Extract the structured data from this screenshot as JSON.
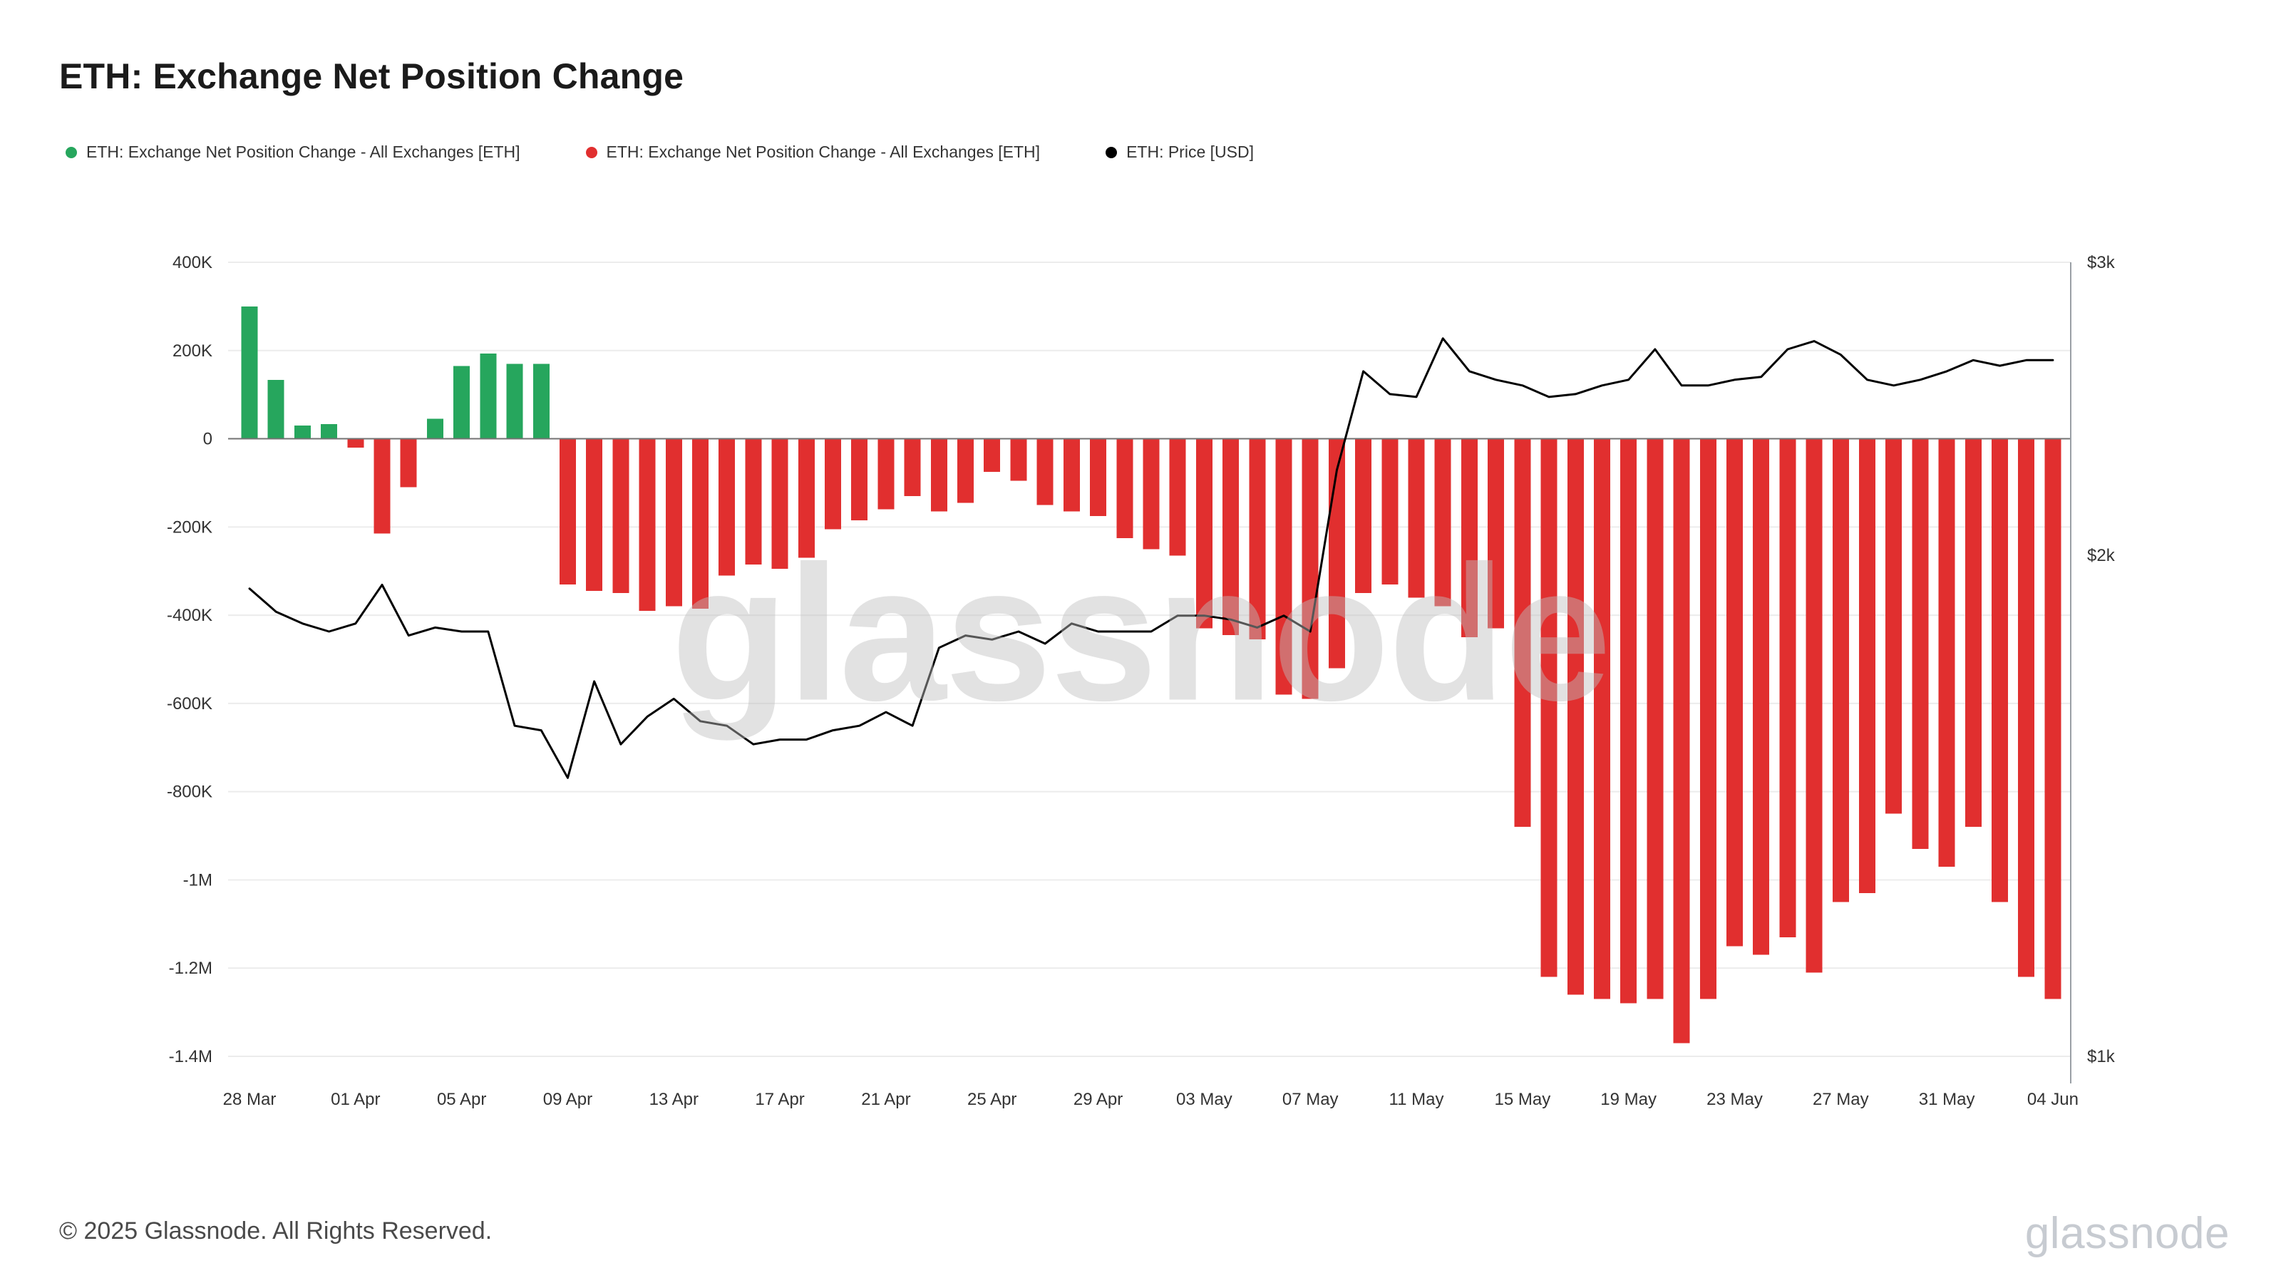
{
  "page": {
    "title": "ETH: Exchange Net Position Change",
    "footer_copyright": "© 2025 Glassnode. All Rights Reserved.",
    "watermark": "glassnode",
    "brand": "glassnode"
  },
  "legend": [
    {
      "label": "ETH: Exchange Net Position Change - All Exchanges [ETH]",
      "color": "#26a65d"
    },
    {
      "label": "ETH: Exchange Net Position Change - All Exchanges [ETH]",
      "color": "#e12f2f"
    },
    {
      "label": "ETH: Price [USD]",
      "color": "#000000"
    }
  ],
  "chart_data": {
    "type": "bar+line",
    "title": "ETH: Exchange Net Position Change",
    "x": [
      "28 Mar",
      "29 Mar",
      "30 Mar",
      "31 Mar",
      "01 Apr",
      "02 Apr",
      "03 Apr",
      "04 Apr",
      "05 Apr",
      "06 Apr",
      "07 Apr",
      "08 Apr",
      "09 Apr",
      "10 Apr",
      "11 Apr",
      "12 Apr",
      "13 Apr",
      "14 Apr",
      "15 Apr",
      "16 Apr",
      "17 Apr",
      "18 Apr",
      "19 Apr",
      "20 Apr",
      "21 Apr",
      "22 Apr",
      "23 Apr",
      "24 Apr",
      "25 Apr",
      "26 Apr",
      "27 Apr",
      "28 Apr",
      "29 Apr",
      "30 Apr",
      "01 May",
      "02 May",
      "03 May",
      "04 May",
      "05 May",
      "06 May",
      "07 May",
      "08 May",
      "09 May",
      "10 May",
      "11 May",
      "12 May",
      "13 May",
      "14 May",
      "15 May",
      "16 May",
      "17 May",
      "18 May",
      "19 May",
      "20 May",
      "21 May",
      "22 May",
      "23 May",
      "24 May",
      "25 May",
      "26 May",
      "27 May",
      "28 May",
      "29 May",
      "30 May",
      "31 May",
      "01 Jun",
      "02 Jun",
      "03 Jun",
      "04 Jun"
    ],
    "series": [
      {
        "name": "ETH: Exchange Net Position Change - All Exchanges [ETH]",
        "type": "bar",
        "axis": "left",
        "unit": "ETH",
        "positive_color": "#26a65d",
        "negative_color": "#e12f2f",
        "values": [
          300000,
          133000,
          30000,
          33000,
          -20000,
          -215000,
          -110000,
          45000,
          165000,
          193000,
          170000,
          170000,
          -330000,
          -345000,
          -350000,
          -390000,
          -380000,
          -385000,
          -310000,
          -285000,
          -295000,
          -270000,
          -205000,
          -185000,
          -160000,
          -130000,
          -165000,
          -145000,
          -75000,
          -95000,
          -150000,
          -165000,
          -175000,
          -225000,
          -250000,
          -265000,
          -430000,
          -445000,
          -455000,
          -580000,
          -590000,
          -520000,
          -350000,
          -330000,
          -360000,
          -380000,
          -450000,
          -430000,
          -880000,
          -1220000,
          -1260000,
          -1270000,
          -1280000,
          -1270000,
          -1370000,
          -1270000,
          -1150000,
          -1170000,
          -1130000,
          -1210000,
          -1050000,
          -1030000,
          -850000,
          -930000,
          -970000,
          -880000,
          -1050000,
          -1220000,
          -1270000
        ]
      },
      {
        "name": "ETH: Price [USD]",
        "type": "line",
        "axis": "right",
        "unit": "USD",
        "color": "#000000",
        "values": [
          1910,
          1850,
          1820,
          1800,
          1820,
          1920,
          1790,
          1810,
          1800,
          1800,
          1580,
          1570,
          1470,
          1680,
          1540,
          1600,
          1640,
          1590,
          1580,
          1540,
          1550,
          1550,
          1570,
          1580,
          1610,
          1580,
          1760,
          1790,
          1780,
          1800,
          1770,
          1820,
          1800,
          1800,
          1800,
          1840,
          1840,
          1830,
          1810,
          1840,
          1800,
          2250,
          2580,
          2500,
          2490,
          2700,
          2580,
          2550,
          2530,
          2490,
          2500,
          2530,
          2550,
          2660,
          2530,
          2530,
          2550,
          2560,
          2660,
          2690,
          2640,
          2550,
          2530,
          2550,
          2580,
          2620,
          2600,
          2620,
          2620
        ]
      }
    ],
    "left_axis": {
      "tick_labels": [
        "400K",
        "200K",
        "0",
        "-200K",
        "-400K",
        "-600K",
        "-800K",
        "-1M",
        "-1.2M",
        "-1.4M"
      ],
      "tick_values": [
        400000,
        200000,
        0,
        -200000,
        -400000,
        -600000,
        -800000,
        -1000000,
        -1200000,
        -1400000
      ],
      "range": [
        -1400000,
        400000
      ],
      "scale": "linear"
    },
    "right_axis": {
      "tick_labels": [
        "$3k",
        "$2k",
        "$1k"
      ],
      "tick_values": [
        3000,
        2000,
        1000
      ],
      "range": [
        1000,
        3000
      ],
      "scale": "log"
    },
    "x_tick_labels": [
      "28 Mar",
      "01 Apr",
      "05 Apr",
      "09 Apr",
      "13 Apr",
      "17 Apr",
      "21 Apr",
      "25 Apr",
      "29 Apr",
      "03 May",
      "07 May",
      "11 May",
      "15 May",
      "19 May",
      "23 May",
      "27 May",
      "31 May",
      "04 Jun"
    ],
    "grid": true,
    "legend_position": "top"
  },
  "style": {
    "grid_color": "#ececec",
    "zero_line_color": "#737373",
    "right_axis_line_color": "#9aa0a6",
    "axis_text_color": "#333333"
  }
}
